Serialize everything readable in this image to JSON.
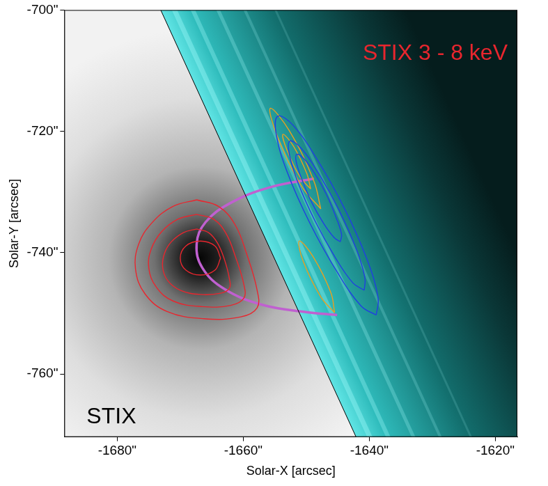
{
  "chart_data": {
    "type": "scatter",
    "x_label": "Solar-X [arcsec]",
    "y_label": "Solar-Y [arcsec]",
    "xlim": [
      -1688.4,
      -1616.5
    ],
    "ylim": [
      -770.4,
      -700
    ],
    "xticks": [
      {
        "value": -1680,
        "label": "-1680\""
      },
      {
        "value": -1660,
        "label": "-1660\""
      },
      {
        "value": -1640,
        "label": "-1640\""
      },
      {
        "value": -1620,
        "label": "-1620\""
      }
    ],
    "yticks": [
      {
        "value": -760,
        "label": "-760\""
      },
      {
        "value": -740,
        "label": "-740\""
      },
      {
        "value": -720,
        "label": "-720\""
      },
      {
        "value": -700,
        "label": "-700\""
      }
    ],
    "grid": false,
    "annotations": [
      {
        "text": "STIX 3 - 8 keV",
        "color": "#e8262e"
      },
      {
        "text": "STIX",
        "color": "#000000"
      }
    ],
    "series": [
      {
        "type": "limb",
        "color": "#000000",
        "marker": "none",
        "line_style": "solid",
        "x": [
          -1673.1,
          -1642.1
        ],
        "y": [
          -700,
          -770.4
        ]
      },
      {
        "type": "contour",
        "color": "#e8262e",
        "marker": "none",
        "line_style": "solid",
        "x": [
          -1667.4,
          -1663.9,
          -1661.3,
          -1659.4,
          -1657.8,
          -1657.8,
          -1660.4,
          -1666.2,
          -1672.1,
          -1675.6,
          -1677.1,
          -1676.6,
          -1674.5,
          -1671.2
        ],
        "y": [
          -731.3,
          -732.4,
          -735.4,
          -740.4,
          -746.2,
          -749.1,
          -750.6,
          -750.9,
          -749.7,
          -746.8,
          -742.7,
          -738.6,
          -735.1,
          -732.4
        ]
      },
      {
        "type": "contour",
        "color": "#e8262e",
        "marker": "none",
        "line_style": "solid",
        "x": [
          -1667.4,
          -1664.7,
          -1662.7,
          -1661.2,
          -1659.9,
          -1659.9,
          -1662.0,
          -1666.5,
          -1671.1,
          -1673.8,
          -1675.0,
          -1674.6,
          -1673.0,
          -1670.4
        ],
        "y": [
          -733.7,
          -734.5,
          -736.9,
          -740.8,
          -745.3,
          -747.5,
          -748.7,
          -748.9,
          -748.0,
          -745.7,
          -742.5,
          -739.4,
          -736.6,
          -734.5
        ]
      },
      {
        "type": "contour",
        "color": "#e8262e",
        "marker": "none",
        "line_style": "solid",
        "x": [
          -1667.4,
          -1665.5,
          -1664.1,
          -1663.0,
          -1662.2,
          -1662.2,
          -1663.6,
          -1666.8,
          -1670.0,
          -1672.0,
          -1672.8,
          -1672.5,
          -1671.4,
          -1669.5
        ],
        "y": [
          -736.1,
          -736.7,
          -738.4,
          -741.1,
          -744.3,
          -745.9,
          -746.7,
          -746.9,
          -746.2,
          -744.6,
          -742.4,
          -740.1,
          -738.2,
          -736.7
        ]
      },
      {
        "type": "contour",
        "color": "#e8262e",
        "marker": "none",
        "line_style": "solid",
        "x": [
          -1663.6,
          -1664.5,
          -1666.8,
          -1669.1,
          -1670.0,
          -1669.1,
          -1666.8,
          -1664.5
        ],
        "y": [
          -740.9,
          -738.9,
          -738.1,
          -738.9,
          -740.9,
          -742.9,
          -743.7,
          -742.9
        ]
      },
      {
        "type": "contour",
        "color": "#2040e0",
        "marker": "none",
        "line_style": "solid",
        "x": [
          -1638.9,
          -1638.6,
          -1640.4,
          -1644.0,
          -1648.3,
          -1652.1,
          -1654.5,
          -1654.8,
          -1653.0,
          -1649.4,
          -1645.1,
          -1641.3
        ],
        "y": [
          -750.3,
          -747.5,
          -741.0,
          -732.6,
          -724.6,
          -719.0,
          -717.5,
          -720.3,
          -726.8,
          -735.2,
          -743.2,
          -748.8
        ]
      },
      {
        "type": "contour",
        "color": "#2040e0",
        "marker": "none",
        "line_style": "solid",
        "x": [
          -1640.8,
          -1640.7,
          -1642.1,
          -1644.8,
          -1648.0,
          -1650.8,
          -1652.6,
          -1652.7,
          -1651.3,
          -1648.6,
          -1645.4,
          -1642.6
        ],
        "y": [
          -746.2,
          -744.1,
          -739.3,
          -733.0,
          -727.0,
          -722.8,
          -721.6,
          -723.7,
          -728.5,
          -734.8,
          -740.8,
          -745.0
        ]
      },
      {
        "type": "contour",
        "color": "#2040e0",
        "marker": "none",
        "line_style": "solid",
        "x": [
          -1644.6,
          -1644.4,
          -1645.3,
          -1646.8,
          -1648.7,
          -1650.4,
          -1651.5,
          -1651.6,
          -1650.7,
          -1649.2,
          -1647.3,
          -1645.6
        ],
        "y": [
          -738.2,
          -737.0,
          -734.1,
          -730.4,
          -726.9,
          -724.5,
          -723.8,
          -725.0,
          -727.9,
          -731.6,
          -735.1,
          -737.5
        ]
      },
      {
        "type": "contour",
        "color": "#e8a020",
        "marker": "none",
        "line_style": "solid",
        "x": [
          -1647.7,
          -1648.8,
          -1652.7,
          -1655.7,
          -1654.6,
          -1650.7
        ],
        "y": [
          -732.8,
          -728.2,
          -719.9,
          -716.2,
          -720.8,
          -729.1
        ]
      },
      {
        "type": "contour",
        "color": "#e8a020",
        "marker": "none",
        "line_style": "solid",
        "x": [
          -1649.3,
          -1649.9,
          -1652.0,
          -1653.7,
          -1653.1,
          -1651.0
        ],
        "y": [
          -729.5,
          -727.0,
          -722.5,
          -720.5,
          -723.0,
          -727.5
        ]
      },
      {
        "type": "contour",
        "color": "#e8a020",
        "marker": "none",
        "line_style": "solid",
        "x": [
          -1645.5,
          -1646.1,
          -1648.9,
          -1651.1,
          -1650.5,
          -1647.7
        ],
        "y": [
          -749.9,
          -746.6,
          -740.7,
          -738.1,
          -741.4,
          -747.3
        ]
      },
      {
        "type": "line",
        "color": "#c060d0",
        "marker": "none",
        "line_style": "solid",
        "x": [
          -1648.8,
          -1656.0,
          -1662.0,
          -1666.0,
          -1667.4,
          -1666.5,
          -1663.0,
          -1657.0,
          -1650.0,
          -1645.1
        ],
        "y": [
          -727.8,
          -729.3,
          -731.8,
          -735.0,
          -738.6,
          -742.5,
          -746.0,
          -748.6,
          -749.8,
          -750.3
        ]
      }
    ]
  }
}
